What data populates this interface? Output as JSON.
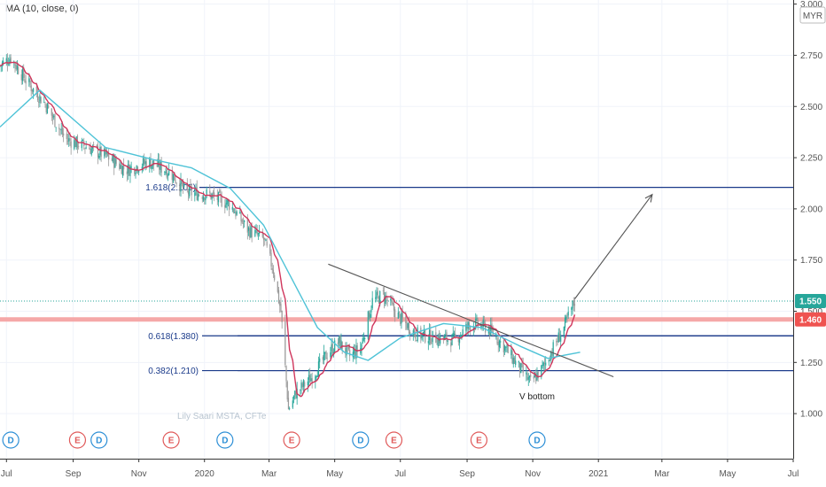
{
  "indicator_label": "MA (10, close, 0)",
  "currency_label": "MYR",
  "watermark": "Lily Saari MSTA, CFTe",
  "colors": {
    "candle_up": "#26a69a",
    "candle_down": "#999999",
    "ma_fast": "#d0365c",
    "ma_slow": "#4fc3d7",
    "fib_line": "#1a3a8a",
    "support_line": "#f5a8a8",
    "price_tag": "#26a69a",
    "support_tag": "#ef5350",
    "earnings_badge": "#e05a5a",
    "dividend_badge": "#2d8fd6"
  },
  "chart_data": {
    "type": "candlestick",
    "x_axis": {
      "start": "2019-06-25",
      "end": "2021-07-01",
      "ticks": [
        {
          "label": "Jul",
          "date": "2019-07-01"
        },
        {
          "label": "Sep",
          "date": "2019-09-01"
        },
        {
          "label": "Nov",
          "date": "2019-11-01"
        },
        {
          "label": "2020",
          "date": "2020-01-01"
        },
        {
          "label": "Mar",
          "date": "2020-03-01"
        },
        {
          "label": "May",
          "date": "2020-05-01"
        },
        {
          "label": "Jul",
          "date": "2020-07-01"
        },
        {
          "label": "Sep",
          "date": "2020-09-01"
        },
        {
          "label": "Nov",
          "date": "2020-11-01"
        },
        {
          "label": "2021",
          "date": "2021-01-01"
        },
        {
          "label": "Mar",
          "date": "2021-03-01"
        },
        {
          "label": "May",
          "date": "2021-05-01"
        },
        {
          "label": "Jul",
          "date": "2021-07-01"
        }
      ]
    },
    "y_axis": {
      "range": [
        0.78,
        3.02
      ],
      "ticks": [
        "3.000",
        "2.750",
        "2.500",
        "2.250",
        "2.000",
        "1.750",
        "1.500",
        "1.250",
        "1.000"
      ]
    },
    "price_path": [
      {
        "date": "2019-06-25",
        "close": 2.7
      },
      {
        "date": "2019-07-05",
        "close": 2.74
      },
      {
        "date": "2019-07-20",
        "close": 2.62
      },
      {
        "date": "2019-08-05",
        "close": 2.52
      },
      {
        "date": "2019-08-25",
        "close": 2.34
      },
      {
        "date": "2019-09-15",
        "close": 2.3
      },
      {
        "date": "2019-10-01",
        "close": 2.26
      },
      {
        "date": "2019-10-20",
        "close": 2.19
      },
      {
        "date": "2019-11-10",
        "close": 2.23
      },
      {
        "date": "2019-11-30",
        "close": 2.18
      },
      {
        "date": "2019-12-15",
        "close": 2.08
      },
      {
        "date": "2020-01-05",
        "close": 2.07
      },
      {
        "date": "2020-01-25",
        "close": 2.02
      },
      {
        "date": "2020-02-10",
        "close": 1.9
      },
      {
        "date": "2020-02-25",
        "close": 1.85
      },
      {
        "date": "2020-03-05",
        "close": 1.7
      },
      {
        "date": "2020-03-12",
        "close": 1.5
      },
      {
        "date": "2020-03-19",
        "close": 1.02
      },
      {
        "date": "2020-03-26",
        "close": 1.1
      },
      {
        "date": "2020-04-10",
        "close": 1.18
      },
      {
        "date": "2020-04-25",
        "close": 1.3
      },
      {
        "date": "2020-05-05",
        "close": 1.35
      },
      {
        "date": "2020-05-15",
        "close": 1.28
      },
      {
        "date": "2020-05-25",
        "close": 1.32
      },
      {
        "date": "2020-06-05",
        "close": 1.55
      },
      {
        "date": "2020-06-15",
        "close": 1.58
      },
      {
        "date": "2020-06-30",
        "close": 1.47
      },
      {
        "date": "2020-07-15",
        "close": 1.39
      },
      {
        "date": "2020-08-01",
        "close": 1.37
      },
      {
        "date": "2020-08-20",
        "close": 1.36
      },
      {
        "date": "2020-09-05",
        "close": 1.44
      },
      {
        "date": "2020-09-20",
        "close": 1.42
      },
      {
        "date": "2020-10-05",
        "close": 1.33
      },
      {
        "date": "2020-10-20",
        "close": 1.22
      },
      {
        "date": "2020-10-30",
        "close": 1.15
      },
      {
        "date": "2020-11-10",
        "close": 1.22
      },
      {
        "date": "2020-11-20",
        "close": 1.32
      },
      {
        "date": "2020-11-30",
        "close": 1.42
      },
      {
        "date": "2020-12-10",
        "close": 1.55
      }
    ],
    "ma_slow_path": [
      {
        "date": "2019-06-25",
        "value": 2.4
      },
      {
        "date": "2019-08-01",
        "value": 2.58
      },
      {
        "date": "2019-08-25",
        "value": 2.47
      },
      {
        "date": "2019-10-01",
        "value": 2.3
      },
      {
        "date": "2019-11-15",
        "value": 2.24
      },
      {
        "date": "2019-12-20",
        "value": 2.2
      },
      {
        "date": "2020-01-25",
        "value": 2.1
      },
      {
        "date": "2020-02-25",
        "value": 1.92
      },
      {
        "date": "2020-03-20",
        "value": 1.68
      },
      {
        "date": "2020-04-15",
        "value": 1.42
      },
      {
        "date": "2020-05-10",
        "value": 1.3
      },
      {
        "date": "2020-06-01",
        "value": 1.26
      },
      {
        "date": "2020-07-01",
        "value": 1.37
      },
      {
        "date": "2020-08-10",
        "value": 1.44
      },
      {
        "date": "2020-09-15",
        "value": 1.42
      },
      {
        "date": "2020-10-20",
        "value": 1.33
      },
      {
        "date": "2020-11-15",
        "value": 1.27
      },
      {
        "date": "2020-12-15",
        "value": 1.3
      }
    ],
    "fib_levels": [
      {
        "label": "1.618(2.105)",
        "value": 2.105
      },
      {
        "label": "0.618(1.380)",
        "value": 1.38
      },
      {
        "label": "0.382(1.210)",
        "value": 1.21
      }
    ],
    "support_level": {
      "value": 1.46,
      "label": "1.460"
    },
    "last_price": {
      "value": 1.55,
      "label": "1.550"
    },
    "trendline": {
      "from": {
        "date": "2020-04-25",
        "value": 1.73
      },
      "to": {
        "date": "2021-01-15",
        "value": 1.18
      }
    },
    "projection_arrow": {
      "from": {
        "date": "2020-12-10",
        "value": 1.56
      },
      "to": {
        "date": "2021-02-20",
        "value": 2.07
      }
    },
    "annotations": [
      {
        "text": "V bottom",
        "date": "2020-11-05",
        "value": 1.07
      }
    ],
    "events": [
      {
        "type": "D",
        "date": "2019-07-05"
      },
      {
        "type": "E",
        "date": "2019-09-05"
      },
      {
        "type": "D",
        "date": "2019-09-25"
      },
      {
        "type": "E",
        "date": "2019-12-01"
      },
      {
        "type": "D",
        "date": "2020-01-20"
      },
      {
        "type": "E",
        "date": "2020-03-22"
      },
      {
        "type": "D",
        "date": "2020-05-25"
      },
      {
        "type": "E",
        "date": "2020-06-25"
      },
      {
        "type": "E",
        "date": "2020-09-12"
      },
      {
        "type": "D",
        "date": "2020-11-05"
      }
    ]
  }
}
